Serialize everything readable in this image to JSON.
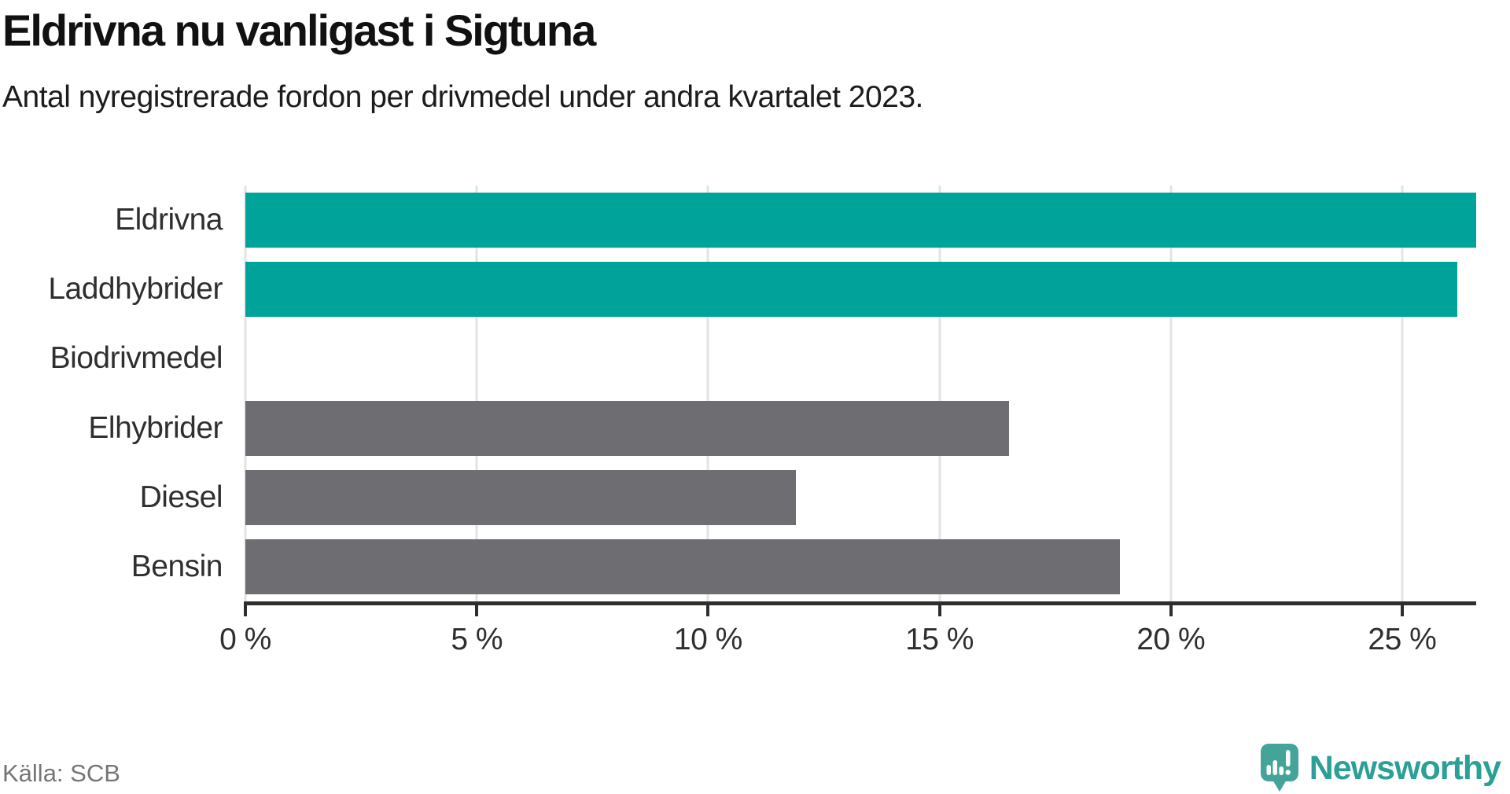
{
  "header": {
    "title": "Eldrivna nu vanligast i Sigtuna",
    "subtitle": "Antal nyregistrerade fordon per drivmedel under andra kvartalet 2023."
  },
  "footer": {
    "source": "Källa: SCB",
    "logo_text": "Newsworthy",
    "logo_icon": "newsworthy-speech-bubble-bar-chart-icon"
  },
  "colors": {
    "highlight_bar": "#00a39a",
    "default_bar": "#6d6d72",
    "axis": "#2e2e2e",
    "grid": "#e3e3e3",
    "title_text": "#111111",
    "subtitle_text": "#1c1c1c",
    "label_text": "#2f2f2f",
    "source_text": "#767676",
    "logo_icon_color": "#45a49a",
    "logo_text_color": "#2ca096"
  },
  "chart_data": {
    "type": "bar",
    "orientation": "horizontal",
    "title": "Eldrivna nu vanligast i Sigtuna",
    "subtitle": "Antal nyregistrerade fordon per drivmedel under andra kvartalet 2023.",
    "source": "Källa: SCB",
    "categories": [
      "Eldrivna",
      "Laddhybrider",
      "Biodrivmedel",
      "Elhybrider",
      "Diesel",
      "Bensin"
    ],
    "values": [
      26.6,
      26.2,
      0,
      16.5,
      11.9,
      18.9
    ],
    "unit": "%",
    "highlighted": [
      true,
      true,
      false,
      false,
      false,
      false
    ],
    "xlabel": "",
    "ylabel": "",
    "xlim": [
      0,
      26.6
    ],
    "x_ticks": [
      0,
      5,
      10,
      15,
      20,
      25
    ],
    "x_tick_labels": [
      "0 %",
      "5 %",
      "10 %",
      "15 %",
      "20 %",
      "25 %"
    ],
    "grid": "vertical-gridlines-on",
    "legend": "none"
  }
}
